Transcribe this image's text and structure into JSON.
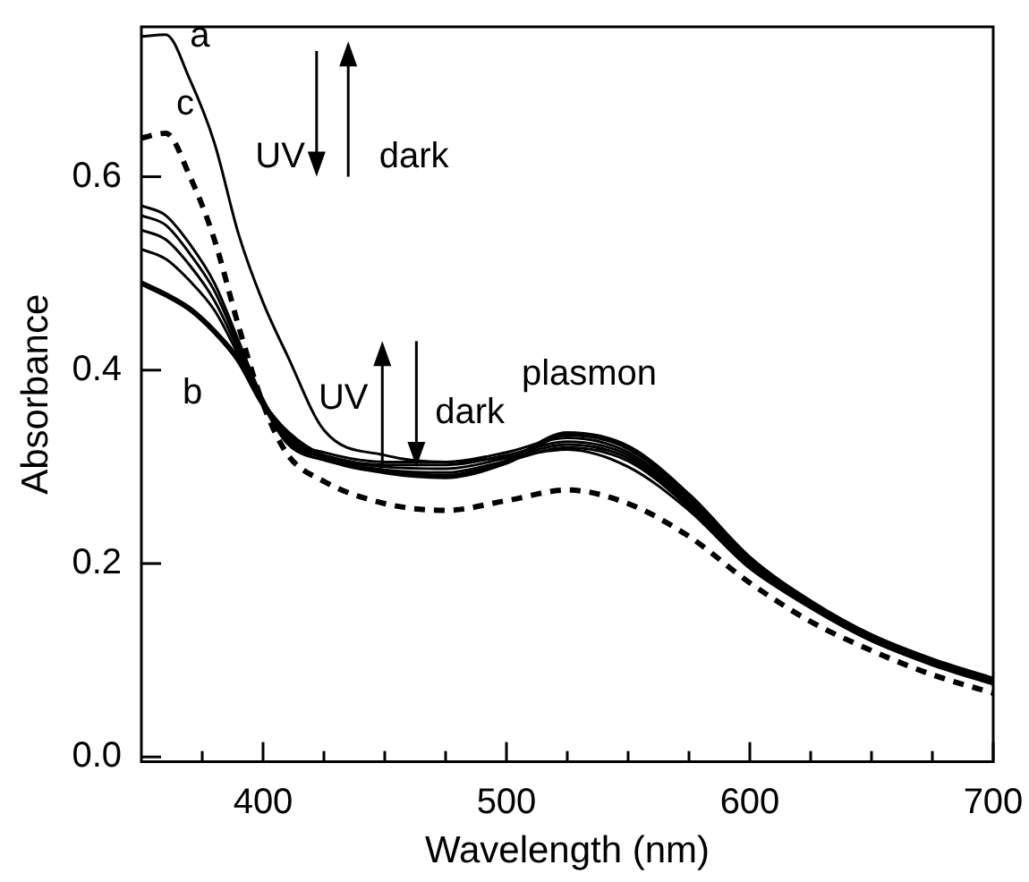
{
  "chart_data": {
    "type": "line",
    "xlabel": "Wavelength (nm)",
    "ylabel": "Absorbance",
    "x": [
      350,
      360,
      370,
      380,
      390,
      400,
      410,
      425,
      450,
      475,
      500,
      525,
      550,
      575,
      600,
      625,
      650,
      675,
      700
    ],
    "xlim": [
      350,
      700
    ],
    "ylim": [
      -0.005,
      0.755
    ],
    "xticks": [
      {
        "value": 375,
        "label": null
      },
      400,
      {
        "value": 425,
        "label": null
      },
      {
        "value": 450,
        "label": null
      },
      {
        "value": 475,
        "label": null
      },
      500,
      {
        "value": 525,
        "label": null
      },
      {
        "value": 550,
        "label": null
      },
      {
        "value": 575,
        "label": null
      },
      600,
      {
        "value": 625,
        "label": null
      },
      {
        "value": 650,
        "label": null
      },
      {
        "value": 675,
        "label": null
      },
      700
    ],
    "yticks": [
      {
        "value": 0,
        "label": "0.0"
      },
      0.2,
      0.4,
      0.6
    ],
    "marker": "none",
    "legend": false,
    "series": [
      {
        "color": "#000000",
        "line_style": "solid",
        "values": [
          0.745,
          0.747,
          0.7,
          0.635,
          0.54,
          0.47,
          0.415,
          0.338,
          0.312,
          0.305,
          0.31,
          0.318,
          0.3,
          0.255,
          0.195,
          0.155,
          0.12,
          0.095,
          0.075
        ]
      },
      {
        "color": "#000000",
        "line_style": "solid",
        "values": [
          0.57,
          0.56,
          0.53,
          0.49,
          0.43,
          0.37,
          0.33,
          0.315,
          0.305,
          0.305,
          0.315,
          0.33,
          0.315,
          0.265,
          0.2,
          0.157,
          0.123,
          0.098,
          0.079
        ]
      },
      {
        "color": "#000000",
        "line_style": "solid",
        "values": [
          0.56,
          0.55,
          0.52,
          0.482,
          0.425,
          0.368,
          0.328,
          0.312,
          0.302,
          0.302,
          0.312,
          0.326,
          0.312,
          0.262,
          0.198,
          0.156,
          0.122,
          0.097,
          0.078
        ]
      },
      {
        "color": "#000000",
        "line_style": "solid",
        "values": [
          0.545,
          0.535,
          0.508,
          0.472,
          0.42,
          0.366,
          0.326,
          0.31,
          0.3,
          0.298,
          0.309,
          0.323,
          0.309,
          0.26,
          0.197,
          0.155,
          0.121,
          0.096,
          0.078
        ]
      },
      {
        "color": "#000000",
        "line_style": "solid",
        "values": [
          0.525,
          0.515,
          0.492,
          0.462,
          0.415,
          0.364,
          0.324,
          0.307,
          0.297,
          0.294,
          0.306,
          0.32,
          0.306,
          0.258,
          0.196,
          0.154,
          0.12,
          0.096,
          0.077
        ]
      },
      {
        "color": "#000000",
        "line_style": "solid",
        "values": [
          0.49,
          0.478,
          0.463,
          0.44,
          0.41,
          0.365,
          0.335,
          0.31,
          0.295,
          0.29,
          0.305,
          0.334,
          0.32,
          0.27,
          0.205,
          0.16,
          0.125,
          0.1,
          0.08
        ]
      },
      {
        "color": "#000000",
        "line_style": "dashed",
        "values": [
          0.64,
          0.645,
          0.6,
          0.535,
          0.445,
          0.365,
          0.313,
          0.285,
          0.262,
          0.255,
          0.265,
          0.276,
          0.262,
          0.228,
          0.18,
          0.14,
          0.11,
          0.085,
          0.066
        ]
      }
    ],
    "annotations": [
      "a",
      "c",
      "b",
      "UV",
      "dark",
      "UV",
      "dark",
      "plasmon"
    ]
  }
}
